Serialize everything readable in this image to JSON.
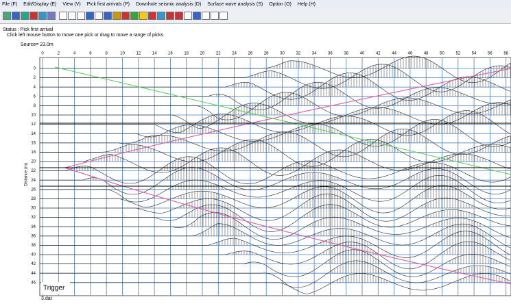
{
  "menu": [
    "File (F)",
    "Edit/Display (E)",
    "View (V)",
    "Pick first arrivals (P)",
    "Downhole seismic analysis (D)",
    "Surface wave analysis (S)",
    "Option (O)",
    "Help (H)"
  ],
  "status": {
    "title": "Status : Pick first arrival",
    "hint": "Click left mouse button to move one pick or drag to move a range of picks."
  },
  "source": "Source= 23.0m",
  "plot": {
    "x_labels": [
      "0",
      "2",
      "4",
      "6",
      "8",
      "10",
      "12",
      "14",
      "16",
      "18",
      "20",
      "22",
      "24",
      "26",
      "28",
      "30",
      "32",
      "34",
      "36",
      "38",
      "40",
      "42",
      "44",
      "46",
      "48",
      "50",
      "52",
      "54",
      "56",
      "58"
    ],
    "y_labels": [
      "0",
      "2",
      "4",
      "6",
      "8",
      "10",
      "12",
      "14",
      "16",
      "18",
      "20",
      "22",
      "24",
      "26",
      "28",
      "30",
      "32",
      "34",
      "36",
      "38",
      "40",
      "42",
      "44",
      "46"
    ],
    "y_axis_label": "Distance (m)",
    "trigger": "Trigger"
  },
  "file_name": "3.dat"
}
